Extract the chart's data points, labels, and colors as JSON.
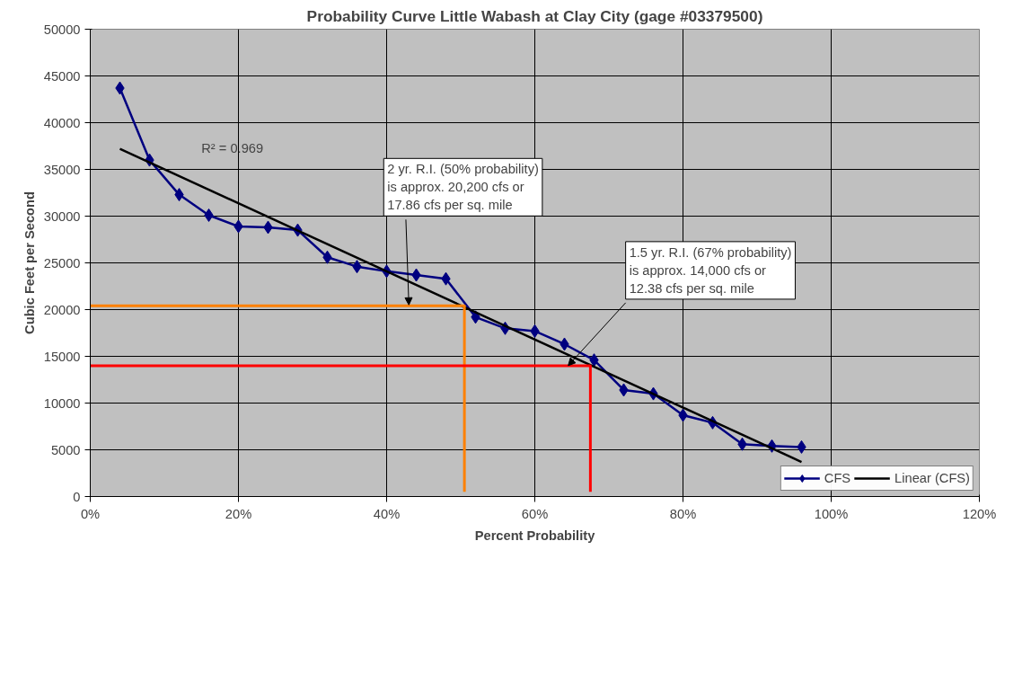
{
  "chart_data": {
    "type": "line",
    "title": "Probability Curve Little Wabash at Clay City (gage #03379500)",
    "xlabel": "Percent Probability",
    "ylabel": "Cubic Feet per Second",
    "xlim": [
      0,
      1.2
    ],
    "xticks": [
      {
        "value": 0,
        "label": "0%"
      },
      {
        "value": 0.2,
        "label": "20%"
      },
      {
        "value": 0.4,
        "label": "40%"
      },
      {
        "value": 0.6,
        "label": "60%"
      },
      {
        "value": 0.8,
        "label": "80%"
      },
      {
        "value": 1.0,
        "label": "100%"
      },
      {
        "value": 1.2,
        "label": "120%"
      }
    ],
    "ylim": [
      0,
      50000
    ],
    "yticks": [
      0,
      5000,
      10000,
      15000,
      20000,
      25000,
      30000,
      35000,
      40000,
      45000,
      50000
    ],
    "grid": true,
    "legend": "bottom right",
    "marker": "diamond",
    "line_style": "solid",
    "series": [
      {
        "name": "CFS",
        "color": "#000080",
        "x": [
          0.04,
          0.08,
          0.12,
          0.16,
          0.2,
          0.24,
          0.28,
          0.32,
          0.36,
          0.4,
          0.44,
          0.48,
          0.52,
          0.56,
          0.6,
          0.64,
          0.68,
          0.72,
          0.76,
          0.8,
          0.84,
          0.88,
          0.92,
          0.96
        ],
        "values": [
          43700,
          36000,
          32300,
          30100,
          28900,
          28800,
          28500,
          25600,
          24600,
          24100,
          23700,
          23300,
          19200,
          18000,
          17700,
          16300,
          14600,
          11400,
          11000,
          8700,
          7900,
          5600,
          5400,
          5300
        ]
      },
      {
        "name": "Linear (CFS)",
        "type": "line",
        "marker": "none",
        "color": "#000000",
        "x": [
          0.04,
          0.96
        ],
        "values": [
          37200,
          3700
        ]
      },
      {
        "type": "line",
        "marker": "none",
        "color": "#ff8000",
        "x": [
          0,
          0.505,
          0.505
        ],
        "values": [
          20400,
          20400,
          500
        ]
      },
      {
        "type": "line",
        "marker": "none",
        "color": "#ff0000",
        "x": [
          0,
          0.675,
          0.675
        ],
        "values": [
          14000,
          14000,
          500
        ]
      }
    ],
    "annotations": [
      "R² = 0.969",
      {
        "text": "2 yr. R.I. (50% probability)\nis approx. 20,200 cfs or\n17.86 cfs per sq. mile",
        "x": 0.43,
        "y": 20500
      },
      {
        "text": "1.5 yr. R.I. (67% probability)\nis approx. 14,000 cfs or\n12.38 cfs per sq. mile",
        "x": 0.645,
        "y": 14000
      }
    ]
  }
}
